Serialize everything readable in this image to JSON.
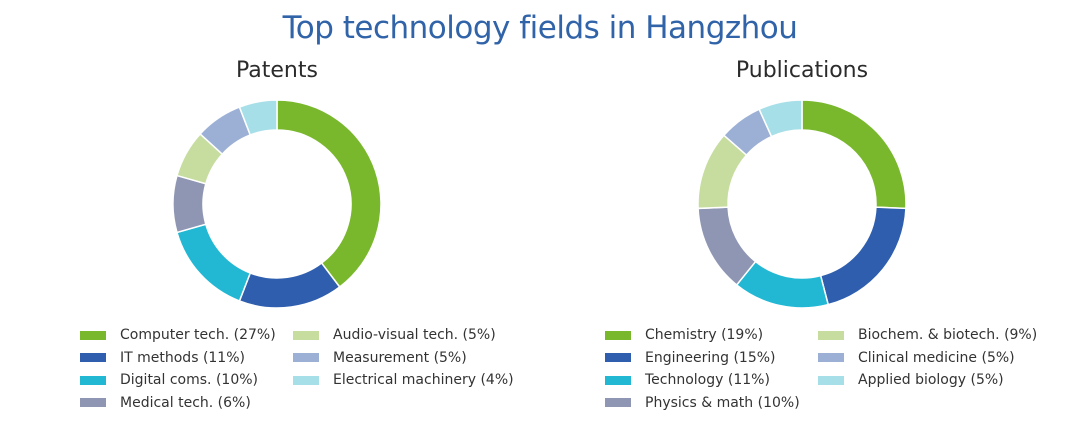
{
  "title": "Top technology fields in Hangzhou",
  "chart_data": [
    {
      "type": "pie",
      "title": "Patents",
      "series": [
        {
          "name": "Computer tech. (27%)",
          "value": 27,
          "color": "#79b82d"
        },
        {
          "name": "IT methods (11%)",
          "value": 11,
          "color": "#2e5ead"
        },
        {
          "name": "Digital coms. (10%)",
          "value": 10,
          "color": "#22b8d4"
        },
        {
          "name": "Medical tech. (6%)",
          "value": 6,
          "color": "#8e96b3"
        },
        {
          "name": "Audio-visual tech. (5%)",
          "value": 5,
          "color": "#c6dd9f"
        },
        {
          "name": "Measurement (5%)",
          "value": 5,
          "color": "#9cb0d6"
        },
        {
          "name": "Electrical machinery (4%)",
          "value": 4,
          "color": "#a7dfe8"
        }
      ]
    },
    {
      "type": "pie",
      "title": "Publications",
      "series": [
        {
          "name": "Chemistry (19%)",
          "value": 19,
          "color": "#79b82d"
        },
        {
          "name": "Engineering (15%)",
          "value": 15,
          "color": "#2e5ead"
        },
        {
          "name": "Technology (11%)",
          "value": 11,
          "color": "#22b8d4"
        },
        {
          "name": "Physics & math (10%)",
          "value": 10,
          "color": "#8e96b3"
        },
        {
          "name": "Biochem. & biotech. (9%)",
          "value": 9,
          "color": "#c6dd9f"
        },
        {
          "name": "Clinical medicine (5%)",
          "value": 5,
          "color": "#9cb0d6"
        },
        {
          "name": "Applied biology (5%)",
          "value": 5,
          "color": "#a7dfe8"
        }
      ]
    }
  ]
}
